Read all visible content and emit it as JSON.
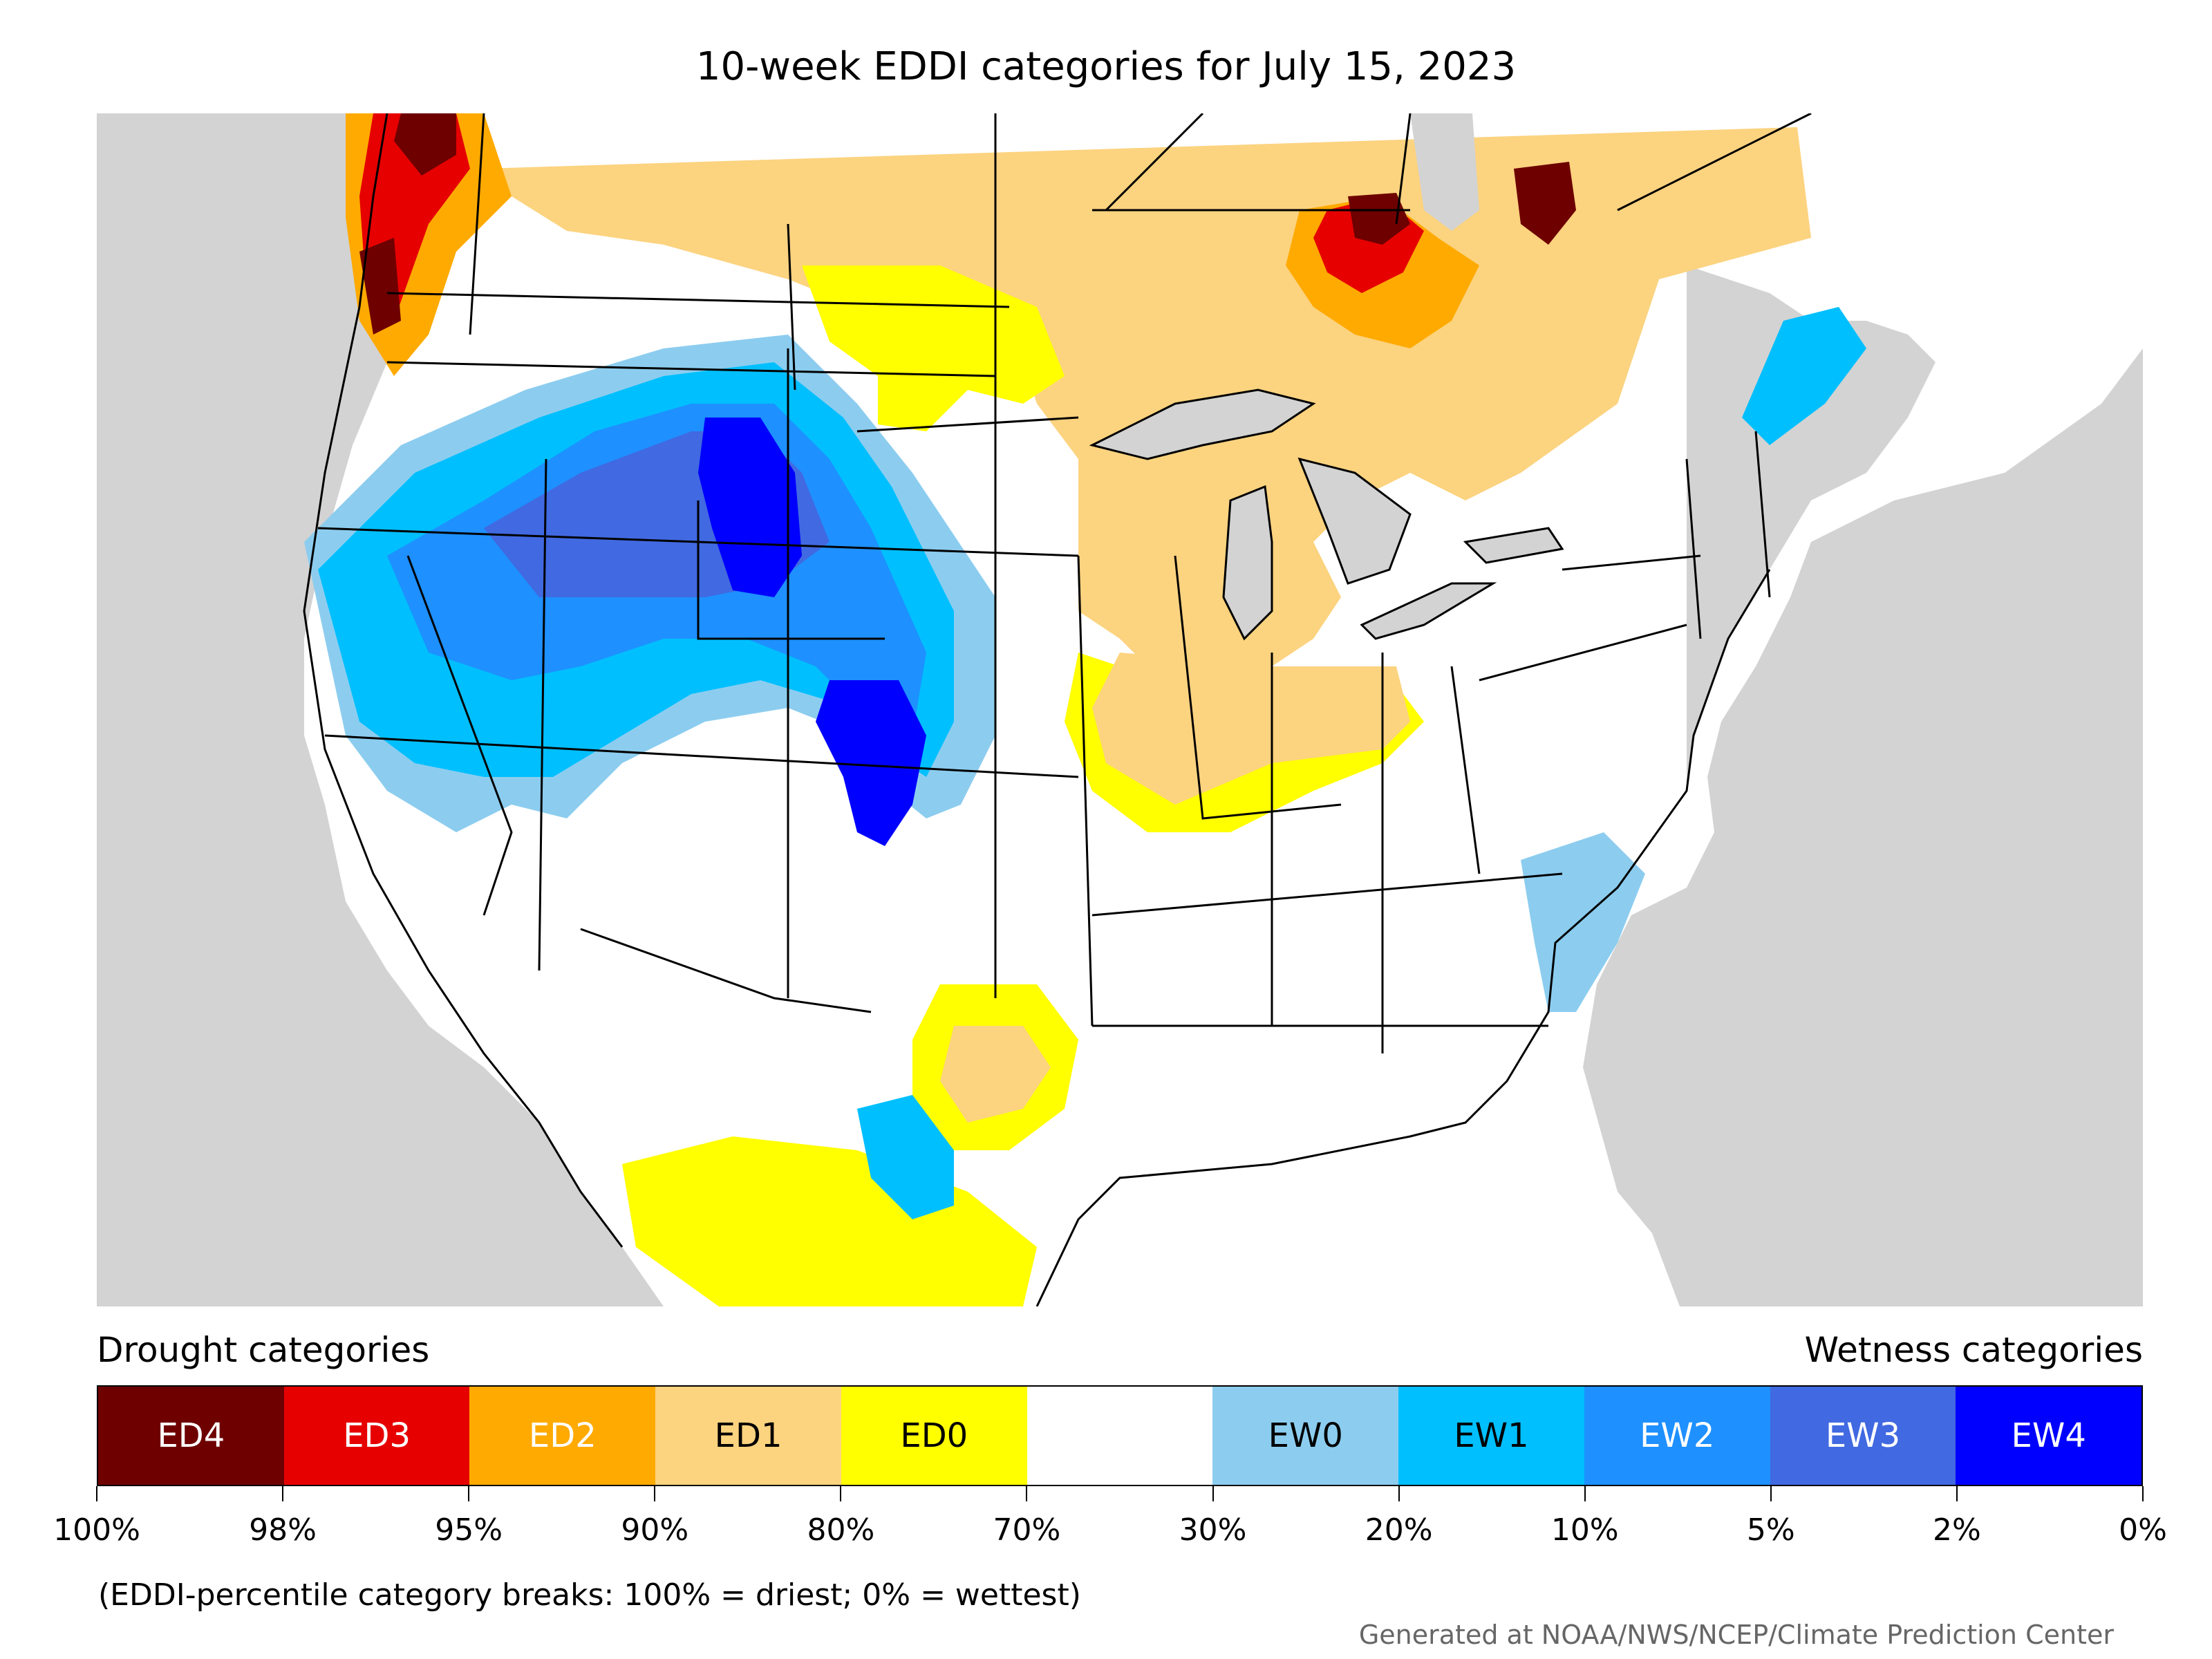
{
  "title": "10-week EDDI categories for July 15, 2023",
  "drought_label": "Drought categories",
  "wetness_label": "Wetness categories",
  "note": "(EDDI-percentile category breaks: 100% = driest; 0% = wettest)",
  "credit": "Generated at NOAA/NWS/NCEP/Climate Prediction Center",
  "legend": [
    {
      "label": "ED4",
      "color": "#6e0000",
      "text_color": "#ffffff"
    },
    {
      "label": "ED3",
      "color": "#e60000",
      "text_color": "#ffffff"
    },
    {
      "label": "ED2",
      "color": "#ffaa00",
      "text_color": "#ffffff"
    },
    {
      "label": "ED1",
      "color": "#fcd37f",
      "text_color": "#000000"
    },
    {
      "label": "ED0",
      "color": "#ffff00",
      "text_color": "#000000"
    },
    {
      "label": "",
      "color": "#ffffff",
      "text_color": "#000000"
    },
    {
      "label": "EW0",
      "color": "#8ccdef",
      "text_color": "#000000"
    },
    {
      "label": "EW1",
      "color": "#00bfff",
      "text_color": "#000000"
    },
    {
      "label": "EW2",
      "color": "#1e90ff",
      "text_color": "#ffffff"
    },
    {
      "label": "EW3",
      "color": "#4169e1",
      "text_color": "#ffffff"
    },
    {
      "label": "EW4",
      "color": "#0000ff",
      "text_color": "#ffffff"
    }
  ],
  "tick_labels": [
    "100%",
    "98%",
    "95%",
    "90%",
    "80%",
    "70%",
    "30%",
    "20%",
    "10%",
    "5%",
    "2%",
    "0%"
  ],
  "map_colors": {
    "outside": "#d3d3d3",
    "water": "#d3d3d3",
    "land": "#ffffff"
  }
}
